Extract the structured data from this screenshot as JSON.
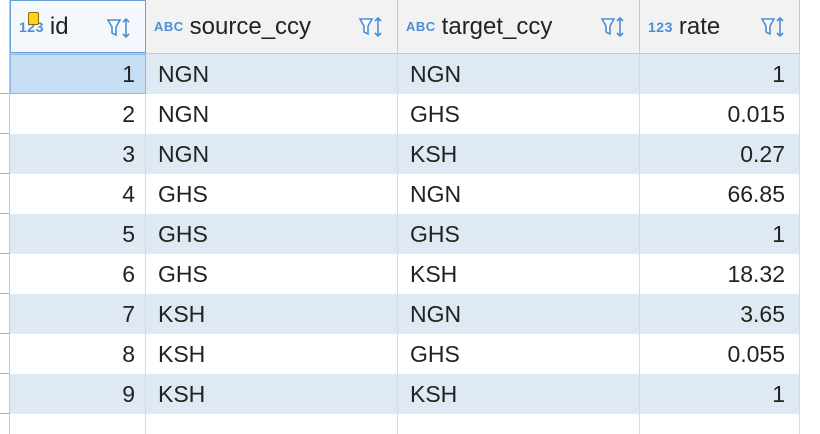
{
  "columns": [
    {
      "type": "123",
      "name": "id",
      "key": true
    },
    {
      "type": "ABC",
      "name": "source_ccy"
    },
    {
      "type": "ABC",
      "name": "target_ccy"
    },
    {
      "type": "123",
      "name": "rate"
    }
  ],
  "rows": [
    {
      "id": "1",
      "source_ccy": "NGN",
      "target_ccy": "NGN",
      "rate": "1"
    },
    {
      "id": "2",
      "source_ccy": "NGN",
      "target_ccy": "GHS",
      "rate": "0.015"
    },
    {
      "id": "3",
      "source_ccy": "NGN",
      "target_ccy": "KSH",
      "rate": "0.27"
    },
    {
      "id": "4",
      "source_ccy": "GHS",
      "target_ccy": "NGN",
      "rate": "66.85"
    },
    {
      "id": "5",
      "source_ccy": "GHS",
      "target_ccy": "GHS",
      "rate": "1"
    },
    {
      "id": "6",
      "source_ccy": "GHS",
      "target_ccy": "KSH",
      "rate": "18.32"
    },
    {
      "id": "7",
      "source_ccy": "KSH",
      "target_ccy": "NGN",
      "rate": "3.65"
    },
    {
      "id": "8",
      "source_ccy": "KSH",
      "target_ccy": "GHS",
      "rate": "0.055"
    },
    {
      "id": "9",
      "source_ccy": "KSH",
      "target_ccy": "KSH",
      "rate": "1"
    }
  ],
  "colors": {
    "accent": "#4a8fd4",
    "stripe": "#dfe9f3",
    "selected": "#c7ddf4"
  },
  "icons": {
    "filter": "filter-sort-icon",
    "key": "primary-key-icon"
  }
}
